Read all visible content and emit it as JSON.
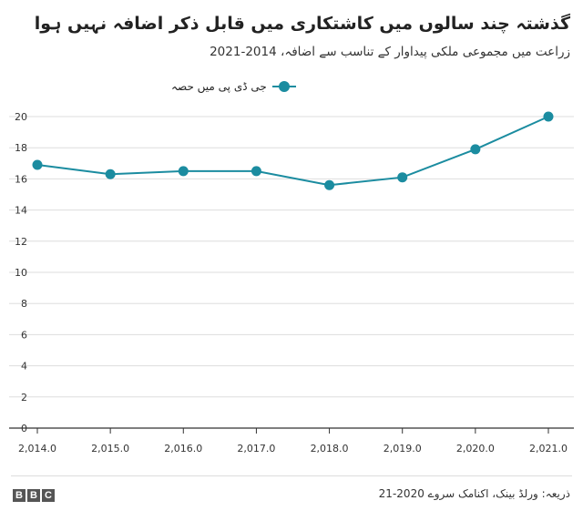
{
  "header": {
    "title": "گذشتہ چند سالوں میں کاشتکاری میں قابل ذکر اضافہ نہیں ہوا",
    "subtitle": "زراعت میں مجموعی ملکی پیداوار کے تناسب سے اضافہ، 2014-2021"
  },
  "legend": {
    "label": "جی ڈی پی میں حصہ"
  },
  "footer": {
    "source": "ذریعہ: ورلڈ بینک، اکنامک سروے 2020-21",
    "logo_letters": [
      "B",
      "B",
      "C"
    ]
  },
  "colors": {
    "series": "#1b8ca0",
    "grid": "#dddddd",
    "axis": "#333333"
  },
  "chart_data": {
    "type": "line",
    "title": "گذشتہ چند سالوں میں کاشتکاری میں قابل ذکر اضافہ نہیں ہوا",
    "subtitle": "زراعت میں مجموعی ملکی پیداوار کے تناسب سے اضافہ، 2014-2021",
    "xlabel": "",
    "ylabel": "",
    "x": [
      2014,
      2015,
      2016,
      2017,
      2018,
      2019,
      2020,
      2021
    ],
    "x_tick_labels": [
      "2,014.0",
      "2,015.0",
      "2,016.0",
      "2,017.0",
      "2,018.0",
      "2,019.0",
      "2,020.0",
      "2,021.0"
    ],
    "y_ticks": [
      0,
      2,
      4,
      6,
      8,
      10,
      12,
      14,
      16,
      18,
      20
    ],
    "ylim": [
      0,
      20
    ],
    "grid": "horizontal",
    "legend_position": "top-left",
    "series": [
      {
        "name": "جی ڈی پی میں حصہ",
        "values": [
          16.9,
          16.3,
          16.5,
          16.5,
          15.6,
          16.1,
          17.9,
          20.0
        ]
      }
    ]
  }
}
